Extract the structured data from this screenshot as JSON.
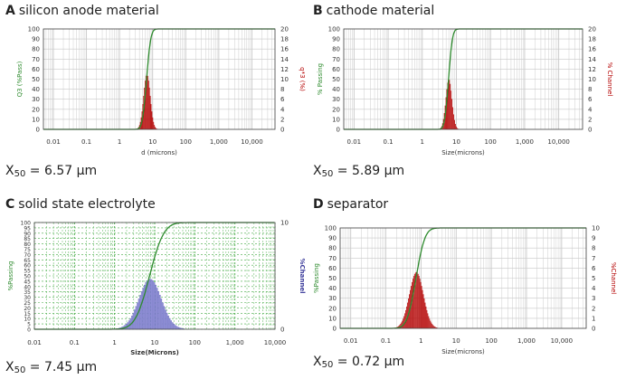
{
  "colors": {
    "passing_line": "#2e8b2e",
    "red_bars": "#b40000",
    "blue_bars": "#8f8fd6",
    "grid": "#c8c8c8",
    "green_dash_grid": "#44aa44"
  },
  "chart_data": [
    {
      "letter": "A",
      "title": "silicon anode material",
      "type": "bar",
      "xlabel": "d (microns)",
      "ylabel_left": "Q3 (%Pass)",
      "ylabel_right": "q*3 (%)",
      "x_scale": "log",
      "xlim": [
        0.005,
        50000
      ],
      "x_ticks": [
        "0.01",
        "0.1",
        "1",
        "10",
        "100",
        "1,000",
        "10,000"
      ],
      "ylim_left": [
        0,
        100
      ],
      "ylim_right": [
        0,
        20
      ],
      "left_ticks": [
        "0",
        "10",
        "20",
        "30",
        "40",
        "50",
        "60",
        "70",
        "80",
        "90",
        "100"
      ],
      "right_ticks": [
        "0",
        "2",
        "4",
        "6",
        "8",
        "10",
        "12",
        "14",
        "16",
        "18",
        "20"
      ],
      "bar_color": "#b40000",
      "grid": "solid",
      "x50_value": "6.57",
      "x50_unit": "µm",
      "distribution": {
        "x50": 6.57,
        "log_sigma": 0.1,
        "peak_right": 11,
        "cum_log_sigma": 0.1
      }
    },
    {
      "letter": "B",
      "title": "cathode material",
      "type": "bar",
      "xlabel": "Size(microns)",
      "ylabel_left": "% Passing",
      "ylabel_right": "% Channel",
      "x_scale": "log",
      "xlim": [
        0.005,
        50000
      ],
      "x_ticks": [
        "0.01",
        "0.1",
        "1",
        "10",
        "100",
        "1,000",
        "10,000"
      ],
      "ylim_left": [
        0,
        100
      ],
      "ylim_right": [
        0,
        20
      ],
      "left_ticks": [
        "0",
        "10",
        "20",
        "30",
        "40",
        "50",
        "60",
        "70",
        "80",
        "90",
        "100"
      ],
      "right_ticks": [
        "0",
        "2",
        "4",
        "6",
        "8",
        "10",
        "12",
        "14",
        "16",
        "18",
        "20"
      ],
      "bar_color": "#b40000",
      "grid": "solid",
      "x50_value": "5.89",
      "x50_unit": "µm",
      "distribution": {
        "x50": 5.89,
        "log_sigma": 0.09,
        "peak_right": 10,
        "cum_log_sigma": 0.09
      }
    },
    {
      "letter": "C",
      "title": "solid state electrolyte",
      "type": "bar",
      "xlabel": "Size(Microns)",
      "ylabel_left": "%Passing",
      "ylabel_right": "%Channel",
      "x_scale": "log",
      "xlim": [
        0.01,
        10000
      ],
      "x_ticks": [
        "0.01",
        "0.1",
        "1",
        "10",
        "100",
        "1,000",
        "10,000"
      ],
      "ylim_left": [
        0,
        100
      ],
      "ylim_right": [
        0,
        10
      ],
      "left_ticks": [
        "0",
        "5",
        "10",
        "15",
        "20",
        "25",
        "30",
        "35",
        "40",
        "45",
        "50",
        "55",
        "60",
        "65",
        "70",
        "75",
        "80",
        "85",
        "90",
        "95",
        "100"
      ],
      "right_ticks": [
        "0",
        "10"
      ],
      "bar_color": "#8f8fd6",
      "grid": "dashed",
      "x50_value": "7.45",
      "x50_unit": "µm",
      "distribution": {
        "x50": 7.45,
        "log_sigma": 0.28,
        "peak_right": 4.7,
        "cum_log_sigma": 0.28
      }
    },
    {
      "letter": "D",
      "title": "separator",
      "type": "bar",
      "xlabel": "Size(microns)",
      "ylabel_left": "%Passing",
      "ylabel_right": "%Channel",
      "x_scale": "log",
      "xlim": [
        0.005,
        50000
      ],
      "x_ticks": [
        "0.01",
        "0.1",
        "1",
        "10",
        "100",
        "1,000",
        "10,000"
      ],
      "ylim_left": [
        0,
        100
      ],
      "ylim_right": [
        0,
        10
      ],
      "left_ticks": [
        "0",
        "10",
        "20",
        "30",
        "40",
        "50",
        "60",
        "70",
        "80",
        "90",
        "100"
      ],
      "right_ticks": [
        "0",
        "1",
        "2",
        "3",
        "4",
        "5",
        "6",
        "7",
        "8",
        "9",
        "10"
      ],
      "bar_color": "#b40000",
      "grid": "solid",
      "x50_value": "0.72",
      "x50_unit": "µm",
      "distribution": {
        "x50": 0.72,
        "log_sigma": 0.2,
        "peak_right": 5.6,
        "cum_log_sigma": 0.2
      }
    }
  ]
}
